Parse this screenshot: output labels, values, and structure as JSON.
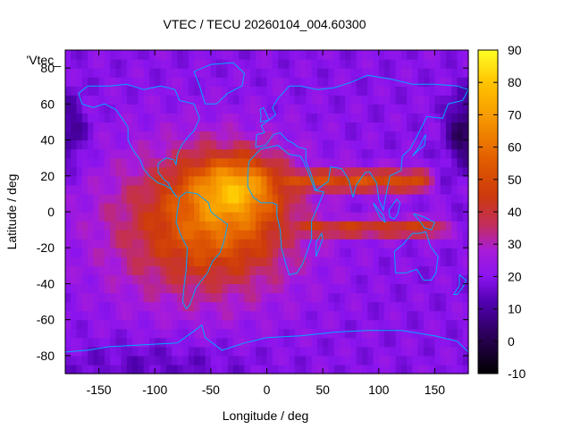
{
  "chart_data": {
    "type": "heatmap",
    "title": "VTEC / TECU 20260104_004.60300",
    "xlabel": "Longitude / deg",
    "ylabel": "Latitude / deg",
    "xlim": [
      -180,
      180
    ],
    "ylim": [
      -90,
      90
    ],
    "x_ticks": [
      "-150",
      "-100",
      "-50",
      "0",
      "50",
      "100",
      "150"
    ],
    "y_ticks": [
      "-80",
      "-60",
      "-40",
      "-20",
      "0",
      "20",
      "40",
      "60",
      "80"
    ],
    "colorbar": {
      "range": [
        -10,
        90
      ],
      "ticks": [
        "-10",
        "0",
        "10",
        "20",
        "30",
        "40",
        "50",
        "60",
        "70",
        "80",
        "90"
      ],
      "colormap": "black-purple-red-orange-yellow"
    },
    "legend_label": "'Vtec_",
    "field_features": {
      "background_level": 20,
      "peak_value": 88,
      "peak_location": {
        "lon": -25,
        "lat": 15
      },
      "main_anomaly_range": {
        "lon": [
          -140,
          40
        ],
        "lat": [
          -55,
          30
        ]
      },
      "tongues": [
        {
          "name": "northern tongue",
          "lon": [
            0,
            135
          ],
          "lat": [
            10,
            25
          ],
          "value": 50
        },
        {
          "name": "southern tongue",
          "lon": [
            30,
            150
          ],
          "lat": [
            -15,
            -3
          ],
          "value": 45
        }
      ],
      "low_spots": [
        {
          "name": "north-east polar minimum",
          "lon": 175,
          "lat": 45,
          "value": 2
        },
        {
          "name": "north-west minimum",
          "lon": -175,
          "lat": 45,
          "value": 8
        }
      ]
    }
  }
}
